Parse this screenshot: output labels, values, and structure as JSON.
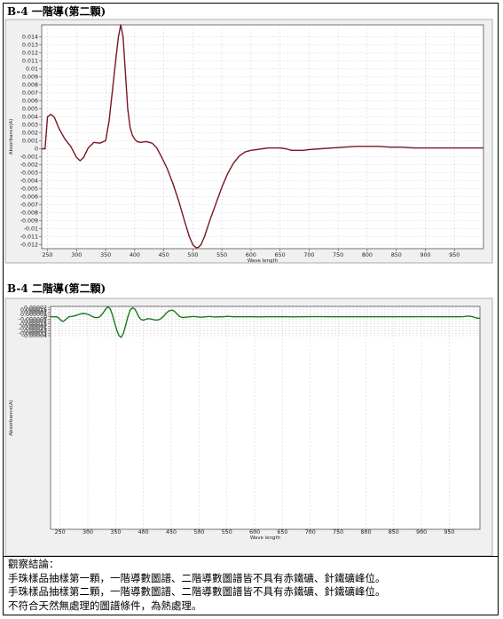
{
  "chart_data": [
    {
      "type": "line",
      "title": "B-4 一階導(第二顆)",
      "xlabel": "Wave length",
      "ylabel": "Absorbance(A)",
      "xlim": [
        240,
        1000
      ],
      "ylim": [
        -0.0125,
        0.0155
      ],
      "xticks": [
        250,
        300,
        350,
        400,
        450,
        500,
        550,
        600,
        650,
        700,
        750,
        800,
        850,
        900,
        950
      ],
      "yticks": [
        "0.014",
        "0.013",
        "0.012",
        "0.011",
        "0.01",
        "0.009",
        "0.008",
        "0.007",
        "0.006",
        "0.005",
        "0.004",
        "0.003",
        "0.002",
        "0.001",
        "0",
        "-0.001",
        "-0.002",
        "-0.003",
        "-0.004",
        "-0.005",
        "-0.006",
        "-0.007",
        "-0.008",
        "-0.009",
        "-0.01",
        "-0.011",
        "-0.012"
      ],
      "ytick_values": [
        0.014,
        0.013,
        0.012,
        0.011,
        0.01,
        0.009,
        0.008,
        0.007,
        0.006,
        0.005,
        0.004,
        0.003,
        0.002,
        0.001,
        0,
        -0.001,
        -0.002,
        -0.003,
        -0.004,
        -0.005,
        -0.006,
        -0.007,
        -0.008,
        -0.009,
        -0.01,
        -0.011,
        -0.012
      ],
      "grid": true,
      "series": [
        {
          "color": "#7a1522",
          "x": [
            240,
            246,
            246,
            250,
            256,
            262,
            270,
            280,
            290,
            300,
            306,
            312,
            320,
            330,
            340,
            350,
            356,
            362,
            368,
            372,
            376,
            380,
            384,
            388,
            392,
            396,
            400,
            404,
            410,
            420,
            430,
            438,
            446,
            456,
            466,
            476,
            486,
            494,
            500,
            506,
            510,
            514,
            520,
            530,
            540,
            550,
            560,
            570,
            580,
            590,
            600,
            610,
            620,
            630,
            640,
            650,
            660,
            670,
            680,
            690,
            700,
            720,
            740,
            760,
            780,
            800,
            820,
            840,
            860,
            880,
            900,
            920,
            940,
            960,
            980,
            1000
          ],
          "y": [
            0,
            0,
            0.0002,
            0.004,
            0.0043,
            0.0039,
            0.0025,
            0.0012,
            0.0003,
            -0.0011,
            -0.0015,
            -0.0011,
            0.0001,
            0.0008,
            0.0007,
            0.001,
            0.0035,
            0.0075,
            0.0115,
            0.014,
            0.0155,
            0.014,
            0.0095,
            0.005,
            0.0027,
            0.0017,
            0.0012,
            0.0009,
            0.0008,
            0.0009,
            0.0007,
            0.0001,
            -0.001,
            -0.0025,
            -0.0044,
            -0.0066,
            -0.0091,
            -0.011,
            -0.012,
            -0.0124,
            -0.0123,
            -0.012,
            -0.011,
            -0.0088,
            -0.0068,
            -0.0048,
            -0.0031,
            -0.0018,
            -0.0009,
            -0.0004,
            -0.0002,
            -0.0001,
            0,
            0.0001,
            0.0001,
            0.0001,
            0,
            -0.0002,
            -0.0002,
            -0.0002,
            -0.0001,
            0,
            0.0001,
            0.0002,
            0.0003,
            0.0003,
            0.0003,
            0.0002,
            0.0002,
            0.0001,
            0.0001,
            0.0001,
            0.0001,
            0.0001,
            0.0001,
            0.0001
          ]
        }
      ]
    },
    {
      "type": "line",
      "title": "B-4 二階導(第二顆)",
      "xlabel": "Wave length",
      "ylabel": "Absorbance(A)",
      "xlim": [
        233,
        1005
      ],
      "ylim": [
        -0.00045,
        2.2e-05
      ],
      "xticks": [
        250,
        300,
        350,
        400,
        450,
        500,
        550,
        600,
        650,
        700,
        750,
        800,
        850,
        900,
        950
      ],
      "yticks": [
        "0.00002",
        "0.000015",
        "0.00001",
        "0.000005",
        "0",
        "-0.000005",
        "-0.00001",
        "-0.000015",
        "-0.00002",
        "-0.000025",
        "-0.00003",
        "-0.000035",
        "-0.00004"
      ],
      "ytick_values": [
        2e-05,
        1.5e-05,
        1e-05,
        5e-06,
        0,
        -5e-06,
        -1e-05,
        -1.5e-05,
        -2e-05,
        -2.5e-05,
        -3e-05,
        -3.5e-05,
        -4e-05
      ],
      "grid": true,
      "series": [
        {
          "color": "#1a7a1a",
          "x": [
            233,
            240,
            244,
            248,
            252,
            256,
            260,
            266,
            272,
            278,
            284,
            290,
            296,
            302,
            308,
            314,
            320,
            324,
            328,
            332,
            336,
            340,
            344,
            348,
            352,
            356,
            360,
            364,
            368,
            372,
            376,
            380,
            384,
            388,
            392,
            396,
            400,
            404,
            408,
            412,
            416,
            420,
            424,
            428,
            432,
            436,
            440,
            444,
            448,
            452,
            456,
            460,
            464,
            468,
            472,
            476,
            480,
            484,
            488,
            492,
            496,
            500,
            504,
            508,
            512,
            516,
            520,
            524,
            528,
            532,
            536,
            540,
            544,
            550,
            556,
            562,
            570,
            580,
            590,
            600,
            610,
            620,
            630,
            640,
            650,
            660,
            670,
            680,
            690,
            700,
            720,
            740,
            760,
            780,
            800,
            820,
            840,
            860,
            880,
            900,
            920,
            940,
            960,
            970,
            976,
            980,
            984,
            988,
            992,
            996,
            1000,
            1005
          ],
          "y": [
            0,
            0,
            0,
            -3e-06,
            -8e-06,
            -1e-05,
            -6e-06,
            0,
            1e-06,
            2.5e-06,
            5e-06,
            7e-06,
            6.5e-06,
            4.5e-06,
            5e-07,
            -2e-06,
            -1e-06,
            3e-06,
            9e-06,
            1.6e-05,
            2.15e-05,
            1.7e-05,
            5e-06,
            -1.2e-05,
            -2.8e-05,
            -4e-05,
            -4.35e-05,
            -3.5e-05,
            -1.8e-05,
            0,
            1.4e-05,
            1.9e-05,
            1.7e-05,
            9e-06,
            -1e-06,
            -6e-06,
            -7e-06,
            -5.5e-06,
            -4e-06,
            -4.5e-06,
            -5.5e-06,
            -6.5e-06,
            -7e-06,
            -6e-06,
            -3.5e-06,
            1e-06,
            6.5e-06,
            1.1e-05,
            1.35e-05,
            1.4e-05,
            1.15e-05,
            6.5e-06,
            1.5e-06,
            -1e-06,
            -1.5e-06,
            -1e-06,
            -5e-07,
            0,
            5e-07,
            5e-07,
            0,
            -5e-07,
            -1e-06,
            -5e-07,
            0,
            5e-07,
            5e-07,
            0,
            -5e-07,
            -5e-07,
            0,
            0,
            0,
            1e-06,
            5e-07,
            0,
            0,
            0,
            2e-07,
            0,
            -2e-07,
            0,
            0,
            0,
            2e-07,
            0,
            -2e-07,
            0,
            0,
            2e-07,
            2e-07,
            0,
            0,
            0,
            0,
            0,
            0,
            0,
            0,
            2e-07,
            1e-07,
            0,
            0,
            0,
            3e-07,
            1e-06,
            1.5e-06,
            1e-06,
            0,
            -1.5e-06,
            -3e-06,
            -3e-06
          ]
        }
      ]
    }
  ],
  "notes": {
    "heading": "觀察結論：",
    "lines": [
      "手珠樣品抽樣第一顆，一階導數圖譜、二階導數圖譜皆不具有赤鐵礦、針鐵礦峰位。",
      "手珠樣品抽樣第二顆，一階導數圖譜、二階導數圖譜皆不具有赤鐵礦、針鐵礦峰位。",
      "不符合天然無處理的圖譜條件，為熱處理。"
    ]
  }
}
